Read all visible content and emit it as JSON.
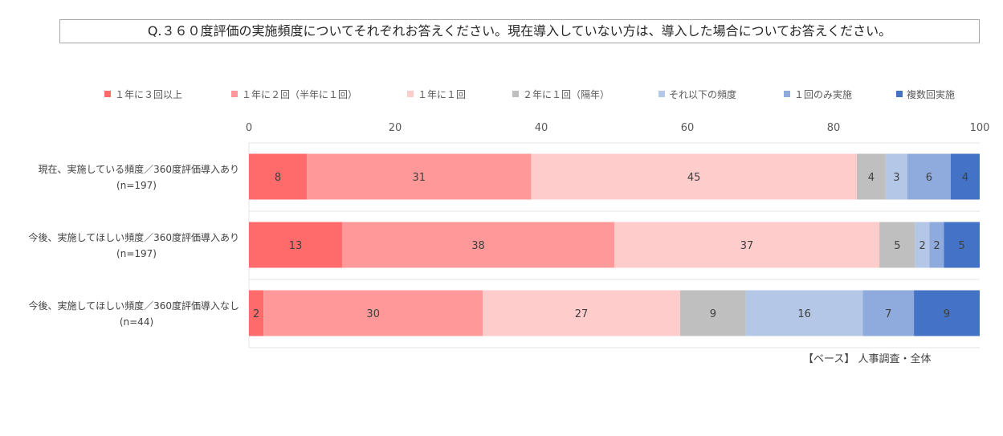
{
  "question": "Q.３６０度評価の実施頻度についてそれぞれお答えください。現在導入していない方は、導入した場合についてお答えください。",
  "base_note": "【ベース】 人事調査・全体",
  "chart_data": {
    "type": "bar",
    "orientation": "horizontal",
    "stacked": true,
    "xlim": [
      0,
      100
    ],
    "xticks": [
      0,
      20,
      40,
      60,
      80,
      100
    ],
    "grid": false,
    "legend_position": "top",
    "categories": [
      [
        "現在、実施している頻度／360度評価導入あり",
        "(n=197)"
      ],
      [
        "今後、実施してほしい頻度／360度評価導入あり",
        "(n=197)"
      ],
      [
        "今後、実施してほしい頻度／360度評価導入なし",
        "(n=44)"
      ]
    ],
    "series": [
      {
        "name": "１年に３回以上",
        "color": "#ff6b6b",
        "values": [
          8,
          13,
          2
        ]
      },
      {
        "name": "１年に２回（半年に１回）",
        "color": "#ff9999",
        "values": [
          31,
          38,
          30
        ]
      },
      {
        "name": "１年に１回",
        "color": "#ffcccc",
        "values": [
          45,
          37,
          27
        ]
      },
      {
        "name": "２年に１回（隔年）",
        "color": "#bfbfbf",
        "values": [
          4,
          5,
          9
        ]
      },
      {
        "name": "それ以下の頻度",
        "color": "#b4c7e7",
        "values": [
          3,
          2,
          16
        ]
      },
      {
        "name": "１回のみ実施",
        "color": "#8faadc",
        "values": [
          6,
          2,
          7
        ]
      },
      {
        "name": "複数回実施",
        "color": "#4472c4",
        "values": [
          4,
          5,
          9
        ]
      }
    ]
  }
}
